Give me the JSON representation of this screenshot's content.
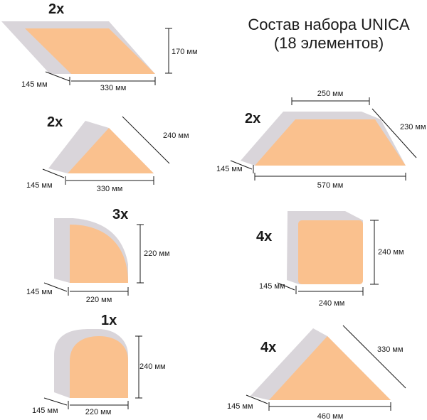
{
  "title": {
    "line1": "Состав набора UNICA",
    "line2": "(18 элементов)"
  },
  "colors": {
    "face": "#fac18e",
    "side": "#d9d5da"
  },
  "items": [
    {
      "id": "parallelogram",
      "qty": "2x",
      "dims": {
        "height": "170 мм",
        "depth": "145 мм",
        "length": "330 мм"
      }
    },
    {
      "id": "triangle-small",
      "qty": "2x",
      "dims": {
        "slant": "240 мм",
        "depth": "145 мм",
        "length": "330 мм"
      }
    },
    {
      "id": "quarter-round",
      "qty": "3x",
      "dims": {
        "height": "220 мм",
        "depth": "145 мм",
        "length": "220 мм"
      }
    },
    {
      "id": "arch",
      "qty": "1x",
      "dims": {
        "height": "240 мм",
        "depth": "145 мм",
        "length": "220 мм"
      }
    },
    {
      "id": "trapezoid",
      "qty": "2x",
      "dims": {
        "top": "250 мм",
        "slant": "230 мм",
        "depth": "145 мм",
        "length": "570 мм"
      }
    },
    {
      "id": "square",
      "qty": "4x",
      "dims": {
        "height": "240 мм",
        "depth": "145 мм",
        "length": "240 мм"
      }
    },
    {
      "id": "triangle-large",
      "qty": "4x",
      "dims": {
        "slant": "330 мм",
        "depth": "145 мм",
        "length": "460 мм"
      }
    }
  ]
}
